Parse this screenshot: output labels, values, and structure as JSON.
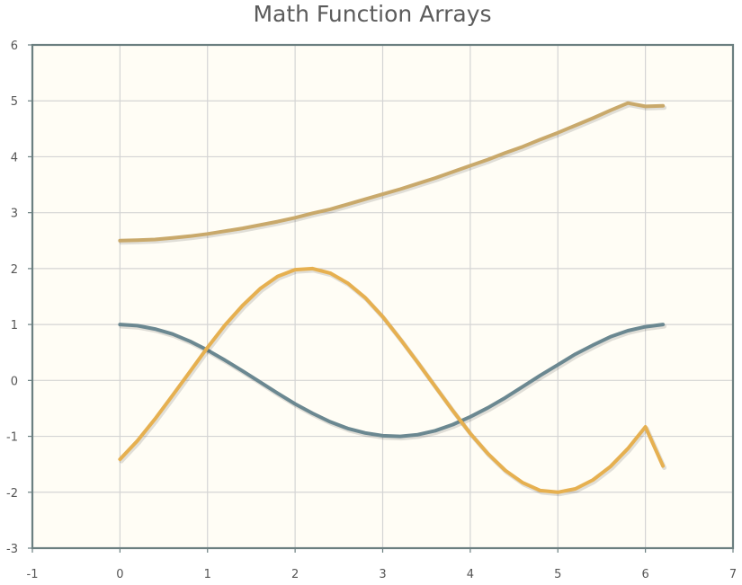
{
  "chart_data": {
    "type": "line",
    "title": "Math Function Arrays",
    "xlabel": "",
    "ylabel": "",
    "xlim": [
      -1,
      7
    ],
    "ylim": [
      -3,
      6
    ],
    "x_ticks": [
      -1,
      0,
      1,
      2,
      3,
      4,
      5,
      6,
      7
    ],
    "y_ticks": [
      -3,
      -2,
      -1,
      0,
      1,
      2,
      3,
      4,
      5,
      6
    ],
    "x_tick_labels": [
      "-1",
      "0",
      "1",
      "2",
      "3",
      "4",
      "5",
      "6",
      "7"
    ],
    "y_tick_labels": [
      "-3",
      "-2",
      "-1",
      "0",
      "1",
      "2",
      "3",
      "4",
      "5",
      "6"
    ],
    "grid": true,
    "legend": "none",
    "background_color": "#fffdf5",
    "x": [
      0,
      0.2,
      0.4,
      0.6,
      0.8,
      1.0,
      1.2,
      1.4,
      1.6,
      1.8,
      2.0,
      2.2,
      2.4,
      2.6,
      2.8,
      3.0,
      3.2,
      3.4,
      3.6,
      3.8,
      4.0,
      4.2,
      4.4,
      4.6,
      4.8,
      5.0,
      5.2,
      5.4,
      5.6,
      5.8,
      6.0,
      6.2
    ],
    "series": [
      {
        "color": "#c9a96b",
        "values": [
          2.5,
          2.51,
          2.52,
          2.55,
          2.58,
          2.62,
          2.67,
          2.72,
          2.78,
          2.84,
          2.91,
          2.99,
          3.06,
          3.15,
          3.24,
          3.33,
          3.42,
          3.52,
          3.62,
          3.73,
          3.84,
          3.95,
          4.07,
          4.18,
          4.31,
          4.43,
          4.56,
          4.69,
          4.83,
          4.96,
          4.9,
          4.91
        ]
      },
      {
        "color": "#6b8891",
        "values": [
          1.0,
          0.98,
          0.92,
          0.83,
          0.7,
          0.54,
          0.36,
          0.17,
          -0.03,
          -0.23,
          -0.42,
          -0.59,
          -0.74,
          -0.86,
          -0.94,
          -0.99,
          -1.0,
          -0.97,
          -0.9,
          -0.79,
          -0.65,
          -0.49,
          -0.31,
          -0.11,
          0.09,
          0.28,
          0.47,
          0.63,
          0.78,
          0.89,
          0.96,
          1.0
        ]
      },
      {
        "color": "#e6b050",
        "values": [
          -1.41,
          -1.08,
          -0.69,
          -0.27,
          0.16,
          0.59,
          0.99,
          1.34,
          1.64,
          1.86,
          1.98,
          2.0,
          1.92,
          1.74,
          1.48,
          1.14,
          0.74,
          0.32,
          -0.11,
          -0.54,
          -0.95,
          -1.31,
          -1.61,
          -1.83,
          -1.97,
          -2.0,
          -1.94,
          -1.78,
          -1.54,
          -1.22,
          -0.83,
          -1.53
        ]
      }
    ]
  }
}
